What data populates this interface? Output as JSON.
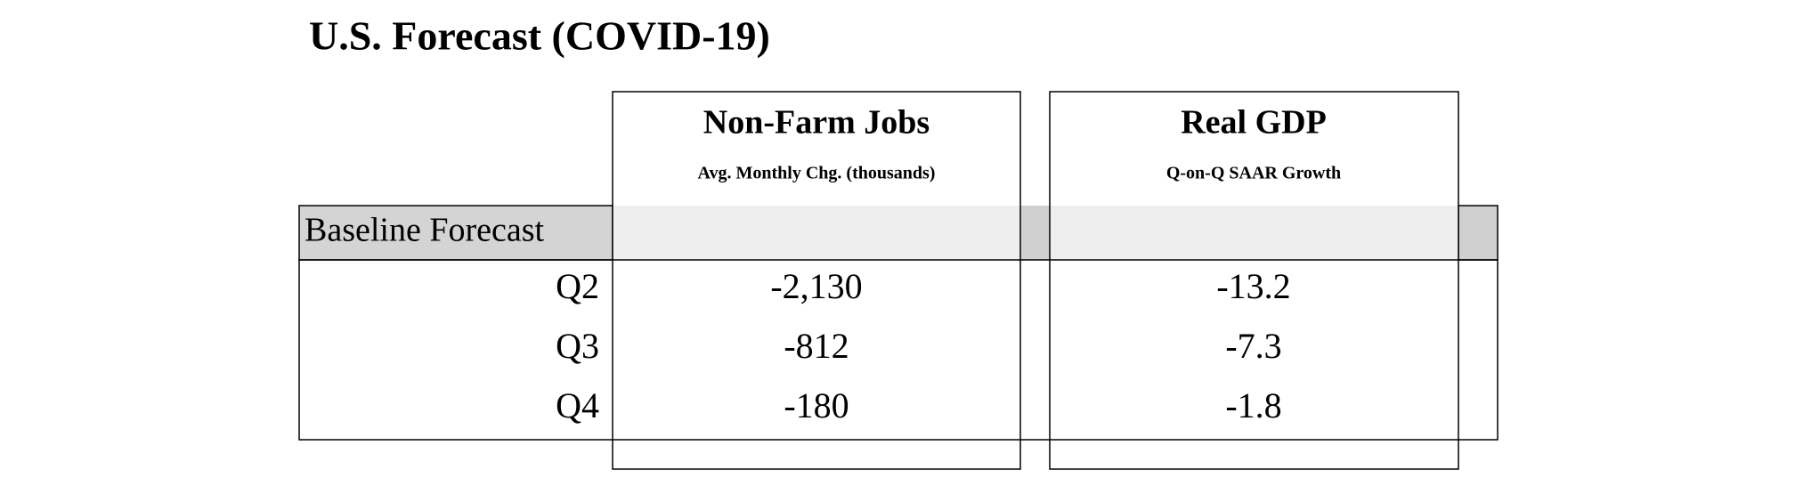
{
  "title": "U.S. Forecast (COVID-19)",
  "columns": [
    {
      "title": "Non-Farm Jobs",
      "subtitle": "Avg. Monthly Chg. (thousands)"
    },
    {
      "title": "Real GDP",
      "subtitle": "Q-on-Q SAAR Growth"
    }
  ],
  "section": "Baseline Forecast",
  "rows": [
    {
      "label": "Q2",
      "values": [
        "-2,130",
        "-13.2"
      ]
    },
    {
      "label": "Q3",
      "values": [
        "-812",
        "-7.3"
      ]
    },
    {
      "label": "Q4",
      "values": [
        "-180",
        "-1.8"
      ]
    }
  ]
}
